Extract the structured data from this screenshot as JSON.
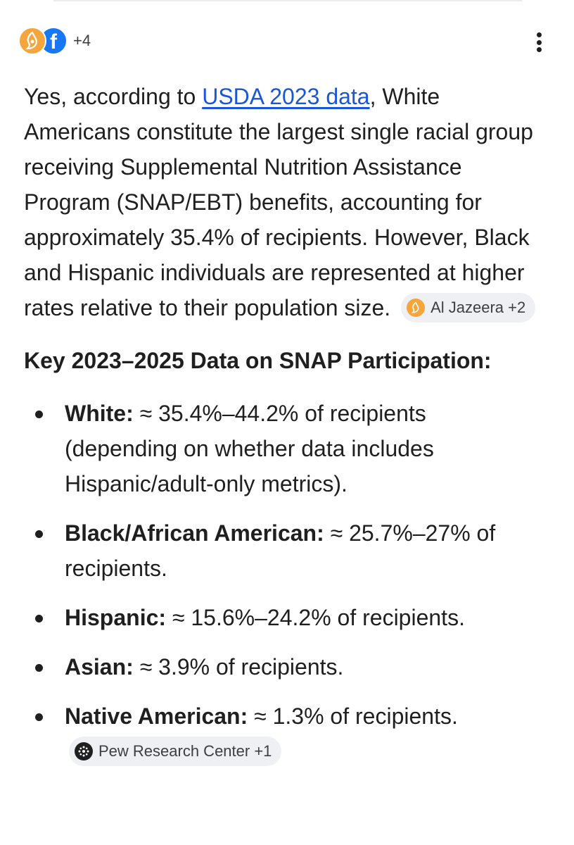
{
  "sources": {
    "icons": [
      "al-jazeera-icon",
      "facebook-icon"
    ],
    "more_count": "+4"
  },
  "answer": {
    "text_before_link": "Yes, according to ",
    "link_text": "USDA 2023 data",
    "text_after_link": ", White Americans constitute the largest single racial group receiving Supplemental Nutrition Assistance Program (SNAP/EBT) benefits, accounting for approximately 35.4% of recipients. However, Black and Hispanic individuals are represented at higher rates relative to their population size.",
    "citation_chip": "Al Jazeera +2"
  },
  "section_heading": "Key 2023–2025 Data on SNAP Participation:",
  "bullets": [
    {
      "label": "White:",
      "text": " ≈ 35.4%–44.2% of recipients (depending on whether data includes Hispanic/adult-only metrics)."
    },
    {
      "label": "Black/African American:",
      "text": " ≈ 25.7%–27% of recipients."
    },
    {
      "label": "Hispanic:",
      "text": " ≈ 15.6%–24.2% of recipients."
    },
    {
      "label": "Asian:",
      "text": " ≈ 3.9% of recipients."
    },
    {
      "label": "Native American:",
      "text": " ≈ 1.3% of recipients.",
      "chip": "Pew Research Center +1"
    }
  ],
  "colors": {
    "link": "#1a57d6",
    "chip_bg": "#eef0f3",
    "al_jazeera": "#f4a53c",
    "facebook": "#1877f2"
  }
}
